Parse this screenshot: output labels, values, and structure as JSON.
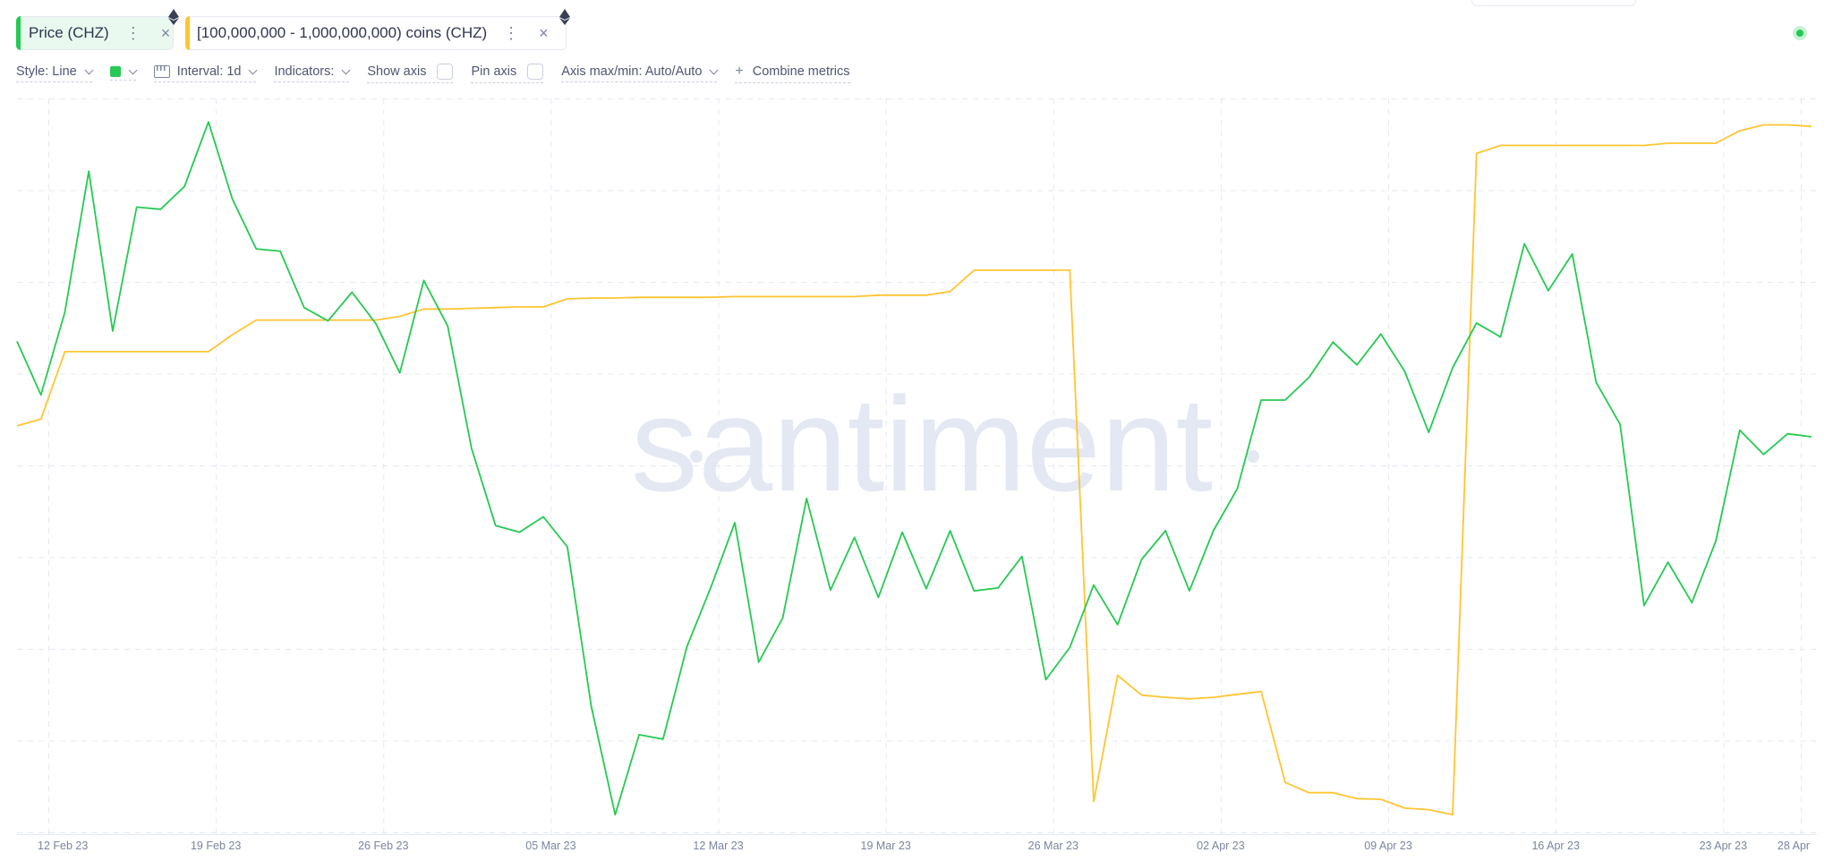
{
  "metrics": [
    {
      "label": "Price (CHZ)",
      "color": "#26c953"
    },
    {
      "label": "[100,000,000 - 1,000,000,000) coins (CHZ)",
      "color": "#ffc532"
    }
  ],
  "toolbar": {
    "style": "Style: Line",
    "interval": "Interval: 1d",
    "indicators": "Indicators:",
    "show_axis": "Show axis",
    "pin_axis": "Pin axis",
    "axis_maxmin": "Axis max/min: Auto/Auto",
    "combine": "Combine metrics"
  },
  "watermark": "santiment",
  "chart_data": {
    "type": "line",
    "x_ticks": [
      "12 Feb 23",
      "19 Feb 23",
      "26 Feb 23",
      "05 Mar 23",
      "12 Mar 23",
      "19 Mar 23",
      "26 Mar 23",
      "02 Apr 23",
      "09 Apr 23",
      "16 Apr 23",
      "23 Apr 23",
      "28 Apr"
    ],
    "x_range": [
      "2023-02-12",
      "2023-04-28"
    ],
    "y_range": [
      0,
      100
    ],
    "grid": true,
    "series": [
      {
        "name": "Price (CHZ)",
        "color": "#26c953",
        "values": [
          66.9,
          59.6,
          70.9,
          90.1,
          68.3,
          85.2,
          84.9,
          88.0,
          96.8,
          86.3,
          79.5,
          79.2,
          71.5,
          69.7,
          73.6,
          69.3,
          62.6,
          75.2,
          69.0,
          52.3,
          41.8,
          40.9,
          43.0,
          38.9,
          17.2,
          2.4,
          13.3,
          12.7,
          25.3,
          33.4,
          42.2,
          23.2,
          29.2,
          45.5,
          33.0,
          40.2,
          32.0,
          40.9,
          33.2,
          41.1,
          32.9,
          33.3,
          37.6,
          20.8,
          25.2,
          33.7,
          28.3,
          37.2,
          41.1,
          32.9,
          41.1,
          46.8,
          58.9,
          58.9,
          62.0,
          66.8,
          63.7,
          67.9,
          62.8,
          54.5,
          63.3,
          69.4,
          67.5,
          80.2,
          73.8,
          78.8,
          61.3,
          55.6,
          30.9,
          36.8,
          31.3,
          39.7,
          54.8,
          51.5,
          54.3,
          53.9
        ]
      },
      {
        "name": "[100,000,000 - 1,000,000,000) coins (CHZ)",
        "color": "#ffc532",
        "values": [
          55.4,
          56.3,
          65.5,
          65.5,
          65.5,
          65.5,
          65.5,
          65.5,
          65.5,
          67.8,
          69.8,
          69.8,
          69.8,
          69.8,
          69.8,
          69.8,
          70.3,
          71.3,
          71.3,
          71.4,
          71.5,
          71.6,
          71.6,
          72.7,
          72.8,
          72.8,
          72.9,
          72.9,
          72.9,
          72.9,
          73.0,
          73.0,
          73.0,
          73.0,
          73.0,
          73.0,
          73.2,
          73.2,
          73.2,
          73.7,
          76.6,
          76.6,
          76.6,
          76.6,
          76.6,
          4.2,
          21.4,
          18.7,
          18.4,
          18.2,
          18.4,
          18.8,
          19.2,
          6.8,
          5.4,
          5.4,
          4.6,
          4.5,
          3.3,
          3.1,
          2.4,
          92.5,
          93.6,
          93.6,
          93.6,
          93.6,
          93.6,
          93.6,
          93.6,
          93.9,
          93.9,
          93.9,
          95.6,
          96.4,
          96.4,
          96.2
        ]
      }
    ]
  }
}
